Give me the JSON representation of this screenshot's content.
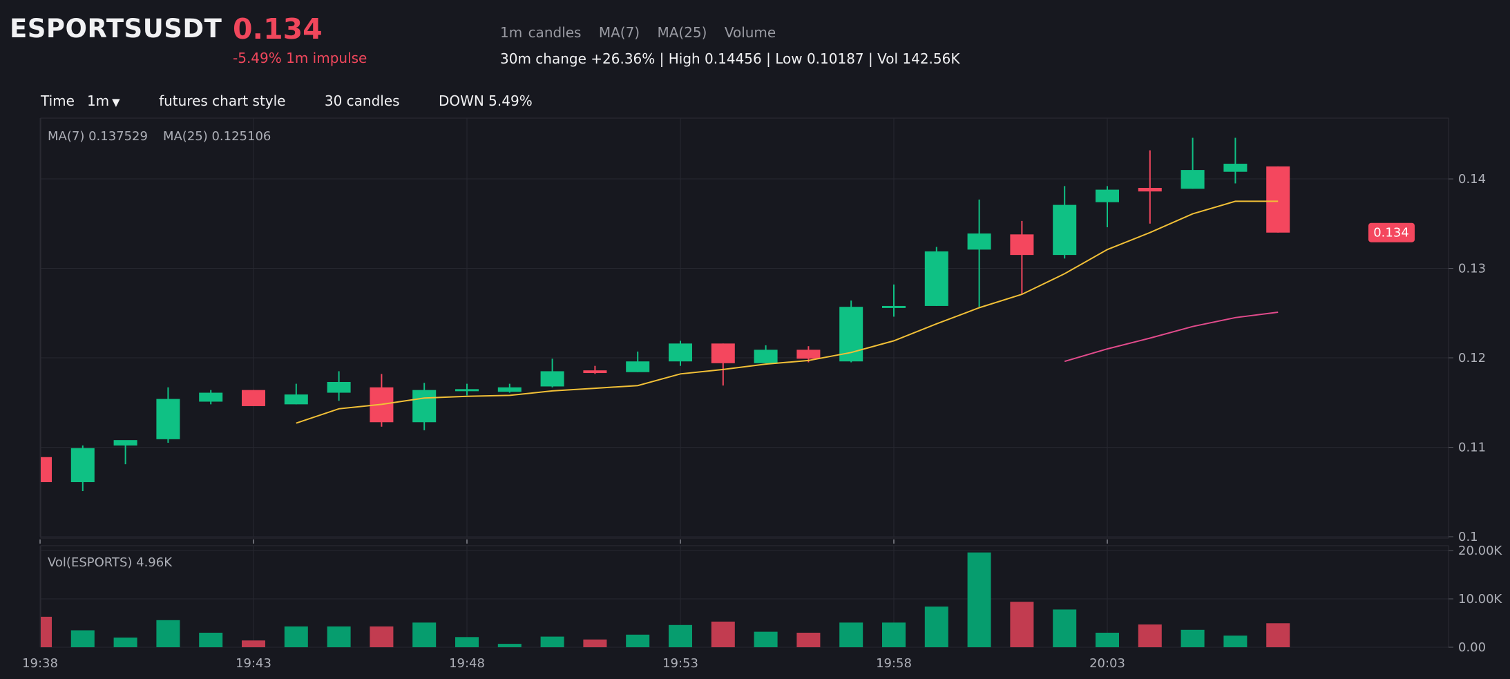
{
  "header": {
    "symbol": "ESPORTSUSDT",
    "price": "0.134",
    "impulse": "-5.49% 1m impulse",
    "indicators": [
      "1m candles",
      "MA(7)",
      "MA(25)",
      "Volume"
    ],
    "stats": "30m change +26.36% | High 0.14456 | Low 0.10187 | Vol 142.56K"
  },
  "toolbar": {
    "time_label": "Time",
    "interval": "1m",
    "style": "futures chart style",
    "candles": "30 candles",
    "direction": "DOWN 5.49%"
  },
  "colors": {
    "up": "#0fc184",
    "down": "#f4475e",
    "up_volume": "#069d6e",
    "down_volume": "#c23c50",
    "ma7": "#f2c037",
    "ma25": "#e24b8c",
    "background": "#17181f"
  },
  "chart_data": {
    "type": "candlestick",
    "price_legend": [
      "MA(7) 0.137529",
      "MA(25) 0.125106"
    ],
    "volume_legend": "Vol(ESPORTS) 4.96K",
    "last_price_label": "0.134",
    "x_tick_labels": [
      "19:38",
      "19:43",
      "19:48",
      "19:53",
      "19:58",
      "20:03"
    ],
    "price_ticks": [
      0.1,
      0.11,
      0.12,
      0.13,
      0.14
    ],
    "price_tick_labels": [
      "0.1",
      "0.11",
      "0.12",
      "0.13",
      "0.14"
    ],
    "price_ylim": [
      0.1,
      0.1468
    ],
    "volume_ticks": [
      0,
      10000,
      20000
    ],
    "volume_tick_labels": [
      "0.00",
      "10.00K",
      "20.00K"
    ],
    "volume_ylim": [
      0,
      20000
    ],
    "candles": [
      {
        "time": "19:38",
        "open": 0.1089,
        "high": 0.1089,
        "low": 0.1015,
        "close": 0.1061,
        "volume": 6300
      },
      {
        "time": "19:39",
        "open": 0.1061,
        "high": 0.1102,
        "low": 0.1051,
        "close": 0.1099,
        "volume": 3500
      },
      {
        "time": "19:40",
        "open": 0.1102,
        "high": 0.1105,
        "low": 0.1081,
        "close": 0.1108,
        "volume": 2000
      },
      {
        "time": "19:41",
        "open": 0.1109,
        "high": 0.1167,
        "low": 0.1105,
        "close": 0.1154,
        "volume": 5600
      },
      {
        "time": "19:42",
        "open": 0.1151,
        "high": 0.1164,
        "low": 0.1148,
        "close": 0.1161,
        "volume": 3000
      },
      {
        "time": "19:43",
        "open": 0.1164,
        "high": 0.1164,
        "low": 0.1146,
        "close": 0.1146,
        "volume": 1400
      },
      {
        "time": "19:44",
        "open": 0.1148,
        "high": 0.1171,
        "low": 0.1148,
        "close": 0.1159,
        "volume": 4300
      },
      {
        "time": "19:45",
        "open": 0.1161,
        "high": 0.1185,
        "low": 0.1152,
        "close": 0.1173,
        "volume": 4300
      },
      {
        "time": "19:46",
        "open": 0.1167,
        "high": 0.1182,
        "low": 0.1123,
        "close": 0.1128,
        "volume": 4300
      },
      {
        "time": "19:47",
        "open": 0.1128,
        "high": 0.1172,
        "low": 0.1119,
        "close": 0.1164,
        "volume": 5100
      },
      {
        "time": "19:48",
        "open": 0.1164,
        "high": 0.1171,
        "low": 0.1158,
        "close": 0.1165,
        "volume": 2100
      },
      {
        "time": "19:49",
        "open": 0.1162,
        "high": 0.1171,
        "low": 0.1161,
        "close": 0.1167,
        "volume": 700
      },
      {
        "time": "19:50",
        "open": 0.1168,
        "high": 0.1199,
        "low": 0.1167,
        "close": 0.1185,
        "volume": 2200
      },
      {
        "time": "19:51",
        "open": 0.1186,
        "high": 0.1191,
        "low": 0.1182,
        "close": 0.1183,
        "volume": 1600
      },
      {
        "time": "19:52",
        "open": 0.1184,
        "high": 0.1207,
        "low": 0.1184,
        "close": 0.1196,
        "volume": 2600
      },
      {
        "time": "19:53",
        "open": 0.1196,
        "high": 0.1219,
        "low": 0.1191,
        "close": 0.1216,
        "volume": 4600
      },
      {
        "time": "19:54",
        "open": 0.1216,
        "high": 0.1216,
        "low": 0.1169,
        "close": 0.1194,
        "volume": 5300
      },
      {
        "time": "19:55",
        "open": 0.1194,
        "high": 0.1214,
        "low": 0.1194,
        "close": 0.1209,
        "volume": 3200
      },
      {
        "time": "19:56",
        "open": 0.1209,
        "high": 0.1213,
        "low": 0.1195,
        "close": 0.1199,
        "volume": 3000
      },
      {
        "time": "19:57",
        "open": 0.1196,
        "high": 0.1264,
        "low": 0.1195,
        "close": 0.1257,
        "volume": 5100
      },
      {
        "time": "19:58",
        "open": 0.1256,
        "high": 0.1282,
        "low": 0.1246,
        "close": 0.1258,
        "volume": 5100
      },
      {
        "time": "19:59",
        "open": 0.1258,
        "high": 0.1324,
        "low": 0.1258,
        "close": 0.1319,
        "volume": 8400
      },
      {
        "time": "20:00",
        "open": 0.1321,
        "high": 0.1377,
        "low": 0.1257,
        "close": 0.1339,
        "volume": 19600
      },
      {
        "time": "20:01",
        "open": 0.1338,
        "high": 0.1353,
        "low": 0.1271,
        "close": 0.1315,
        "volume": 9400
      },
      {
        "time": "20:02",
        "open": 0.1315,
        "high": 0.1392,
        "low": 0.1311,
        "close": 0.1371,
        "volume": 7800
      },
      {
        "time": "20:03",
        "open": 0.1374,
        "high": 0.1392,
        "low": 0.1346,
        "close": 0.1388,
        "volume": 3000
      },
      {
        "time": "20:04",
        "open": 0.139,
        "high": 0.1432,
        "low": 0.135,
        "close": 0.1386,
        "volume": 4700
      },
      {
        "time": "20:05",
        "open": 0.1389,
        "high": 0.1446,
        "low": 0.1389,
        "close": 0.141,
        "volume": 3600
      },
      {
        "time": "20:06",
        "open": 0.1408,
        "high": 0.1446,
        "low": 0.1395,
        "close": 0.1417,
        "volume": 2400
      },
      {
        "time": "20:07",
        "open": 0.1414,
        "high": 0.1414,
        "low": 0.134,
        "close": 0.134,
        "volume": 4960
      }
    ],
    "ma7": [
      null,
      null,
      null,
      null,
      null,
      null,
      0.1127,
      0.1143,
      0.1148,
      0.1155,
      0.1157,
      0.1158,
      0.1163,
      0.1166,
      0.1169,
      0.1182,
      0.1187,
      0.1193,
      0.1197,
      0.1206,
      0.1219,
      0.1238,
      0.1256,
      0.1271,
      0.1294,
      0.1321,
      0.134,
      0.1361,
      0.1375,
      0.1375
    ],
    "ma25": [
      null,
      null,
      null,
      null,
      null,
      null,
      null,
      null,
      null,
      null,
      null,
      null,
      null,
      null,
      null,
      null,
      null,
      null,
      null,
      null,
      null,
      null,
      null,
      null,
      0.1196,
      0.121,
      0.1222,
      0.1235,
      0.1245,
      0.1251
    ]
  }
}
